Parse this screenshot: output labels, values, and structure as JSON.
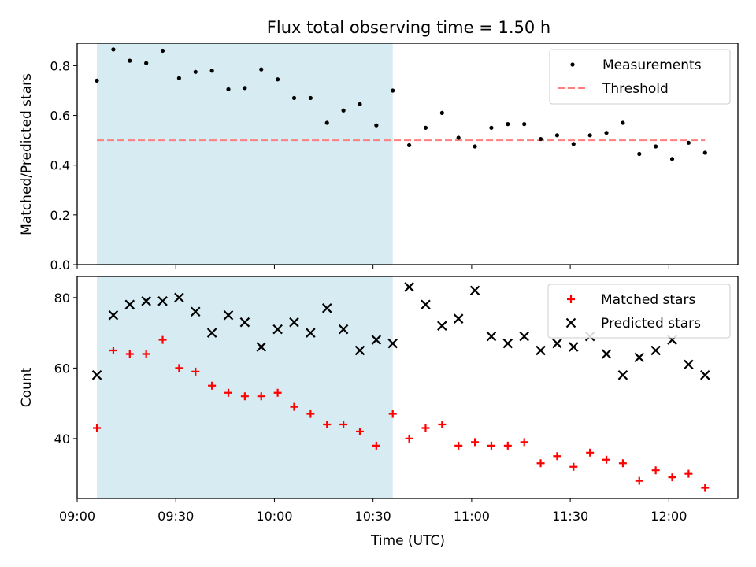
{
  "chart_data": [
    {
      "type": "scatter",
      "title": "Flux total observing time = 1.50 h",
      "xlabel": "",
      "ylabel": "Matched/Predicted stars",
      "ylim": [
        0,
        0.89
      ],
      "yticks": [
        0.0,
        0.2,
        0.4,
        0.6,
        0.8
      ],
      "ytick_labels": [
        "0.0",
        "0.2",
        "0.4",
        "0.6",
        "0.8"
      ],
      "shaded_span": {
        "start": "09:06",
        "end": "10:36",
        "color": "#add8e6"
      },
      "threshold": {
        "label": "Threshold",
        "value": 0.5,
        "x_start": "09:06",
        "x_end": "12:11",
        "color": "#ff7f7f"
      },
      "legend": {
        "position": "top-right",
        "entries": [
          "Measurements",
          "Threshold"
        ]
      },
      "series": [
        {
          "name": "Measurements",
          "marker": "dot",
          "color": "#000000",
          "x": [
            "09:06",
            "09:11",
            "09:16",
            "09:21",
            "09:26",
            "09:31",
            "09:36",
            "09:41",
            "09:46",
            "09:51",
            "09:56",
            "10:01",
            "10:06",
            "10:11",
            "10:16",
            "10:21",
            "10:26",
            "10:31",
            "10:36",
            "10:41",
            "10:46",
            "10:51",
            "10:56",
            "11:01",
            "11:06",
            "11:11",
            "11:16",
            "11:21",
            "11:26",
            "11:31",
            "11:36",
            "11:41",
            "11:46",
            "11:51",
            "11:56",
            "12:01",
            "12:06",
            "12:11"
          ],
          "values": [
            0.74,
            0.865,
            0.82,
            0.81,
            0.86,
            0.75,
            0.775,
            0.78,
            0.705,
            0.71,
            0.785,
            0.745,
            0.67,
            0.67,
            0.57,
            0.62,
            0.645,
            0.56,
            0.7,
            0.48,
            0.55,
            0.61,
            0.51,
            0.475,
            0.55,
            0.565,
            0.565,
            0.505,
            0.52,
            0.485,
            0.52,
            0.53,
            0.57,
            0.445,
            0.475,
            0.425,
            0.49,
            0.45
          ]
        }
      ]
    },
    {
      "type": "scatter",
      "title": "",
      "xlabel": "Time (UTC)",
      "ylabel": "Count",
      "ylim": [
        23,
        86
      ],
      "yticks": [
        40,
        60,
        80
      ],
      "ytick_labels": [
        "40",
        "60",
        "80"
      ],
      "xlim": [
        "09:00",
        "12:21"
      ],
      "xticks": [
        "09:00",
        "09:30",
        "10:00",
        "10:30",
        "11:00",
        "11:30",
        "12:00"
      ],
      "shaded_span": {
        "start": "09:06",
        "end": "10:36",
        "color": "#add8e6"
      },
      "legend": {
        "position": "top-right",
        "entries": [
          "Matched stars",
          "Predicted stars"
        ]
      },
      "series": [
        {
          "name": "Matched stars",
          "marker": "plus",
          "color": "#ff0000",
          "x": [
            "09:06",
            "09:11",
            "09:16",
            "09:21",
            "09:26",
            "09:31",
            "09:36",
            "09:41",
            "09:46",
            "09:51",
            "09:56",
            "10:01",
            "10:06",
            "10:11",
            "10:16",
            "10:21",
            "10:26",
            "10:31",
            "10:36",
            "10:41",
            "10:46",
            "10:51",
            "10:56",
            "11:01",
            "11:06",
            "11:11",
            "11:16",
            "11:21",
            "11:26",
            "11:31",
            "11:36",
            "11:41",
            "11:46",
            "11:51",
            "11:56",
            "12:01",
            "12:06",
            "12:11"
          ],
          "values": [
            43,
            65,
            64,
            64,
            68,
            60,
            59,
            55,
            53,
            52,
            52,
            53,
            49,
            47,
            44,
            44,
            42,
            38,
            47,
            40,
            43,
            44,
            38,
            39,
            38,
            38,
            39,
            33,
            35,
            32,
            36,
            34,
            33,
            28,
            31,
            29,
            30,
            26
          ]
        },
        {
          "name": "Predicted stars",
          "marker": "x",
          "color": "#000000",
          "x": [
            "09:06",
            "09:11",
            "09:16",
            "09:21",
            "09:26",
            "09:31",
            "09:36",
            "09:41",
            "09:46",
            "09:51",
            "09:56",
            "10:01",
            "10:06",
            "10:11",
            "10:16",
            "10:21",
            "10:26",
            "10:31",
            "10:36",
            "10:41",
            "10:46",
            "10:51",
            "10:56",
            "11:01",
            "11:06",
            "11:11",
            "11:16",
            "11:21",
            "11:26",
            "11:31",
            "11:36",
            "11:41",
            "11:46",
            "11:51",
            "11:56",
            "12:01",
            "12:06",
            "12:11"
          ],
          "values": [
            58,
            75,
            78,
            79,
            79,
            80,
            76,
            70,
            75,
            73,
            66,
            71,
            73,
            70,
            77,
            71,
            65,
            68,
            67,
            83,
            78,
            72,
            74,
            82,
            69,
            67,
            69,
            65,
            67,
            66,
            69,
            64,
            58,
            63,
            65,
            68,
            61,
            58
          ]
        }
      ]
    }
  ]
}
